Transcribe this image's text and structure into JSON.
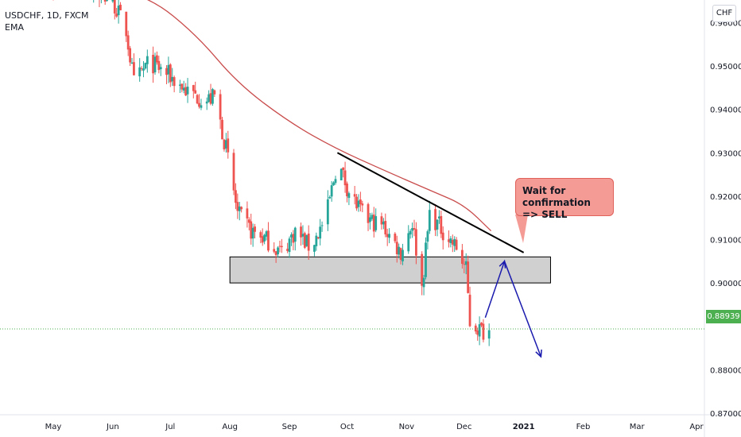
{
  "header": {
    "symbol_line": "USDCHF, 1D, FXCM",
    "indicator_label": "EMA",
    "currency": "CHF"
  },
  "current_price": "0.88939",
  "callout": {
    "line1": "Wait for confirmation",
    "line2": "=> SELL"
  },
  "colors": {
    "up_candle": "#26a69a",
    "down_candle": "#ef5350",
    "ema_line": "#c94c4c",
    "trendline": "#000000",
    "zone_fill": "#c8c8c8",
    "projection": "#1a1aae",
    "price_line": "#4caf50"
  },
  "chart_data": {
    "type": "candlestick",
    "x_axis_labels": [
      "May",
      "Jun",
      "Jul",
      "Aug",
      "Sep",
      "Oct",
      "Nov",
      "Dec",
      "2021",
      "Feb",
      "Mar",
      "Apr"
    ],
    "y_axis_labels": [
      "0.96000",
      "0.95000",
      "0.94000",
      "0.93000",
      "0.92000",
      "0.91000",
      "0.90000",
      "0.88000",
      "0.87000"
    ],
    "ylim": [
      0.8645,
      0.9652
    ],
    "grid": false,
    "series": [
      {
        "kind": "candles",
        "close_path": [
          [
            "2020-05-01",
            0.968
          ],
          [
            "2020-05-15",
            0.969
          ],
          [
            "2020-06-01",
            0.965
          ],
          [
            "2020-06-08",
            0.958
          ],
          [
            "2020-06-12",
            0.946
          ],
          [
            "2020-06-20",
            0.951
          ],
          [
            "2020-06-30",
            0.948
          ],
          [
            "2020-07-10",
            0.944
          ],
          [
            "2020-07-20",
            0.942
          ],
          [
            "2020-07-24",
            0.943
          ],
          [
            "2020-07-30",
            0.931
          ],
          [
            "2020-08-05",
            0.916
          ],
          [
            "2020-08-12",
            0.912
          ],
          [
            "2020-08-20",
            0.91
          ],
          [
            "2020-08-28",
            0.907
          ],
          [
            "2020-09-04",
            0.912
          ],
          [
            "2020-09-12",
            0.908
          ],
          [
            "2020-09-20",
            0.915
          ],
          [
            "2020-09-26",
            0.928
          ],
          [
            "2020-10-02",
            0.921
          ],
          [
            "2020-10-10",
            0.915
          ],
          [
            "2020-10-20",
            0.913
          ],
          [
            "2020-10-29",
            0.907
          ],
          [
            "2020-11-04",
            0.914
          ],
          [
            "2020-11-09",
            0.899
          ],
          [
            "2020-11-13",
            0.916
          ],
          [
            "2020-11-20",
            0.912
          ],
          [
            "2020-11-27",
            0.908
          ],
          [
            "2020-12-02",
            0.903
          ],
          [
            "2020-12-04",
            0.891
          ],
          [
            "2020-12-10",
            0.889
          ],
          [
            "2020-12-14",
            0.889
          ]
        ]
      },
      {
        "kind": "EMA",
        "points": [
          [
            "2020-05-20",
            0.969
          ],
          [
            "2020-06-20",
            0.966
          ],
          [
            "2020-07-15",
            0.957
          ],
          [
            "2020-08-05",
            0.946
          ],
          [
            "2020-09-01",
            0.937
          ],
          [
            "2020-09-25",
            0.931
          ],
          [
            "2020-10-20",
            0.926
          ],
          [
            "2020-11-15",
            0.921
          ],
          [
            "2020-12-01",
            0.918
          ],
          [
            "2020-12-15",
            0.912
          ]
        ]
      }
    ],
    "annotations": [
      {
        "kind": "trendline",
        "from": [
          "2020-09-26",
          0.93
        ],
        "to": [
          "2021-01-01",
          0.907
        ]
      },
      {
        "kind": "zone",
        "from_date": "2020-08-01",
        "to_date": "2021-01-15",
        "low": 0.9,
        "high": 0.906
      },
      {
        "kind": "projection",
        "points": [
          [
            "2020-12-12",
            0.892
          ],
          [
            "2020-12-22",
            0.905
          ],
          [
            "2021-01-10",
            0.883
          ]
        ]
      },
      {
        "kind": "horizontal-line",
        "value": 0.88939
      }
    ]
  }
}
